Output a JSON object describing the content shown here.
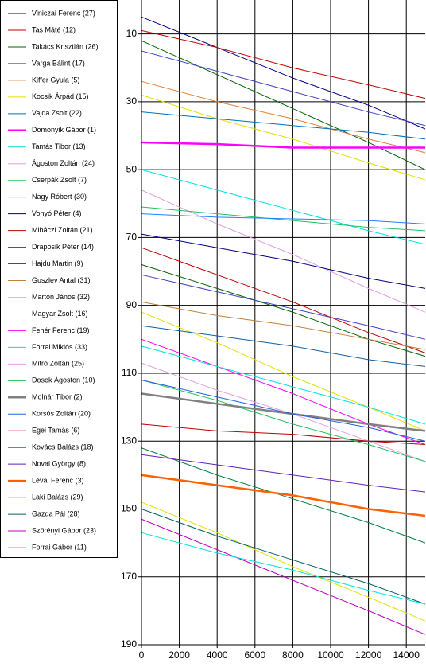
{
  "chart_data": {
    "type": "line",
    "xlim": [
      0,
      15000
    ],
    "ylim": [
      0,
      190
    ],
    "y_inverted": true,
    "grid": true,
    "xticks": [
      0,
      2000,
      4000,
      6000,
      8000,
      10000,
      12000,
      14000
    ],
    "yticks": [
      10,
      30,
      50,
      70,
      90,
      110,
      130,
      150,
      170,
      190
    ],
    "x": [
      0,
      4000,
      8000,
      12000,
      15000
    ],
    "series": [
      {
        "name": "Viniczai Ferenc (27)",
        "color": "#000080",
        "line_width": 1,
        "values": [
          5,
          14,
          23,
          31,
          38
        ]
      },
      {
        "name": "Tas Máté (12)",
        "color": "#c00000",
        "line_width": 1,
        "values": [
          9,
          14,
          20,
          25,
          29
        ]
      },
      {
        "name": "Takács Krisztián (26)",
        "color": "#006400",
        "line_width": 1,
        "values": [
          12,
          22,
          32,
          42,
          50
        ]
      },
      {
        "name": "Varga Bálint (17)",
        "color": "#4040c0",
        "line_width": 1,
        "values": [
          15,
          21,
          27,
          33,
          37
        ]
      },
      {
        "name": "Kiffer Gyula (5)",
        "color": "#e08030",
        "line_width": 1,
        "values": [
          24,
          30,
          35,
          41,
          45
        ]
      },
      {
        "name": "Kocsik Árpád (15)",
        "color": "#e0e000",
        "line_width": 1,
        "values": [
          28,
          35,
          41,
          48,
          53
        ]
      },
      {
        "name": "Vajda Zsolt (22)",
        "color": "#0070c0",
        "line_width": 1,
        "values": [
          33,
          35,
          37,
          39,
          41
        ]
      },
      {
        "name": "Domonyik Gábor (1)",
        "color": "#ff00ff",
        "line_width": 2.5,
        "values": [
          42,
          42.5,
          43.5,
          43.5,
          43.5
        ]
      },
      {
        "name": "Tamás Tibor (13)",
        "color": "#00e0e0",
        "line_width": 1,
        "values": [
          50,
          56,
          62,
          68,
          72
        ]
      },
      {
        "name": "Ágoston Zoltán (24)",
        "color": "#e0a0e0",
        "line_width": 1,
        "values": [
          56,
          66,
          75,
          85,
          92
        ]
      },
      {
        "name": "Cserpák Zsolt (7)",
        "color": "#20c060",
        "line_width": 1,
        "values": [
          61,
          63,
          65,
          67,
          68
        ]
      },
      {
        "name": "Nagy Róbert (30)",
        "color": "#2080ff",
        "line_width": 1,
        "values": [
          63,
          64,
          64.5,
          65,
          66
        ]
      },
      {
        "name": "Vonyó Péter (4)",
        "color": "#000080",
        "line_width": 1,
        "values": [
          69,
          73,
          77,
          82,
          85
        ]
      },
      {
        "name": "Miháczi Zoltán (21)",
        "color": "#c00000",
        "line_width": 1,
        "values": [
          73,
          81,
          89,
          98,
          104
        ]
      },
      {
        "name": "Draposik Péter (14)",
        "color": "#006400",
        "line_width": 1,
        "values": [
          78,
          85,
          92,
          100,
          105
        ]
      },
      {
        "name": "Hajdu Martin (9)",
        "color": "#4040c0",
        "line_width": 1,
        "values": [
          81,
          86,
          91,
          96,
          100
        ]
      },
      {
        "name": "Guszlev Antal (31)",
        "color": "#c08040",
        "line_width": 1,
        "values": [
          89,
          93,
          96,
          100,
          103
        ]
      },
      {
        "name": "Marton János (32)",
        "color": "#e0e000",
        "line_width": 1,
        "values": [
          92,
          101,
          111,
          120,
          127
        ]
      },
      {
        "name": "Magyar Zsolt (16)",
        "color": "#1060a0",
        "line_width": 1,
        "values": [
          96,
          99,
          102,
          106,
          108
        ]
      },
      {
        "name": "Fehér Ferenc (19)",
        "color": "#ff00ff",
        "line_width": 1,
        "values": [
          100,
          108,
          116,
          125,
          131
        ]
      },
      {
        "name": "Forrai Miklós (33)",
        "color": "#00e0e0",
        "line_width": 1,
        "values": [
          102,
          108,
          114,
          120,
          125
        ]
      },
      {
        "name": "Mitró Zoltán (25)",
        "color": "#e0a0e0",
        "line_width": 1,
        "values": [
          107,
          115,
          122,
          130,
          136
        ]
      },
      {
        "name": "Dosek Ágoston (10)",
        "color": "#20c060",
        "line_width": 1,
        "values": [
          112,
          118,
          125,
          131,
          136
        ]
      },
      {
        "name": "Molnár Tibor (2)",
        "color": "#808080",
        "line_width": 2.5,
        "values": [
          116,
          119,
          122,
          125,
          127
        ]
      },
      {
        "name": "Korsós Zoltán (20)",
        "color": "#2060e0",
        "line_width": 1,
        "values": [
          112,
          117,
          122,
          126,
          130
        ]
      },
      {
        "name": "Egei Tamás (6)",
        "color": "#c00000",
        "line_width": 1,
        "values": [
          125,
          127,
          128,
          130,
          131
        ]
      },
      {
        "name": "Kovács Balázs (18)",
        "color": "#008040",
        "line_width": 1,
        "values": [
          132,
          140,
          147,
          154,
          160
        ]
      },
      {
        "name": "Novai György (8)",
        "color": "#6020c0",
        "line_width": 1,
        "values": [
          134,
          137,
          140,
          143,
          145
        ]
      },
      {
        "name": "Lévai Ferenc (3)",
        "color": "#ff6000",
        "line_width": 2.5,
        "values": [
          140,
          143,
          146,
          150,
          152
        ]
      },
      {
        "name": "Laki Balázs (29)",
        "color": "#e0e000",
        "line_width": 1,
        "values": [
          148,
          157,
          167,
          176,
          183
        ]
      },
      {
        "name": "Gazda Pál (28)",
        "color": "#006060",
        "line_width": 1,
        "values": [
          150,
          158,
          165,
          172,
          178
        ]
      },
      {
        "name": "Szörényi Gábor (23)",
        "color": "#c000c0",
        "line_width": 1,
        "values": [
          153,
          162,
          171,
          180,
          187
        ]
      },
      {
        "name": "Forrai Gábor (11)",
        "color": "#00e0e0",
        "line_width": 1,
        "values": [
          157,
          163,
          168,
          174,
          178
        ]
      }
    ]
  }
}
